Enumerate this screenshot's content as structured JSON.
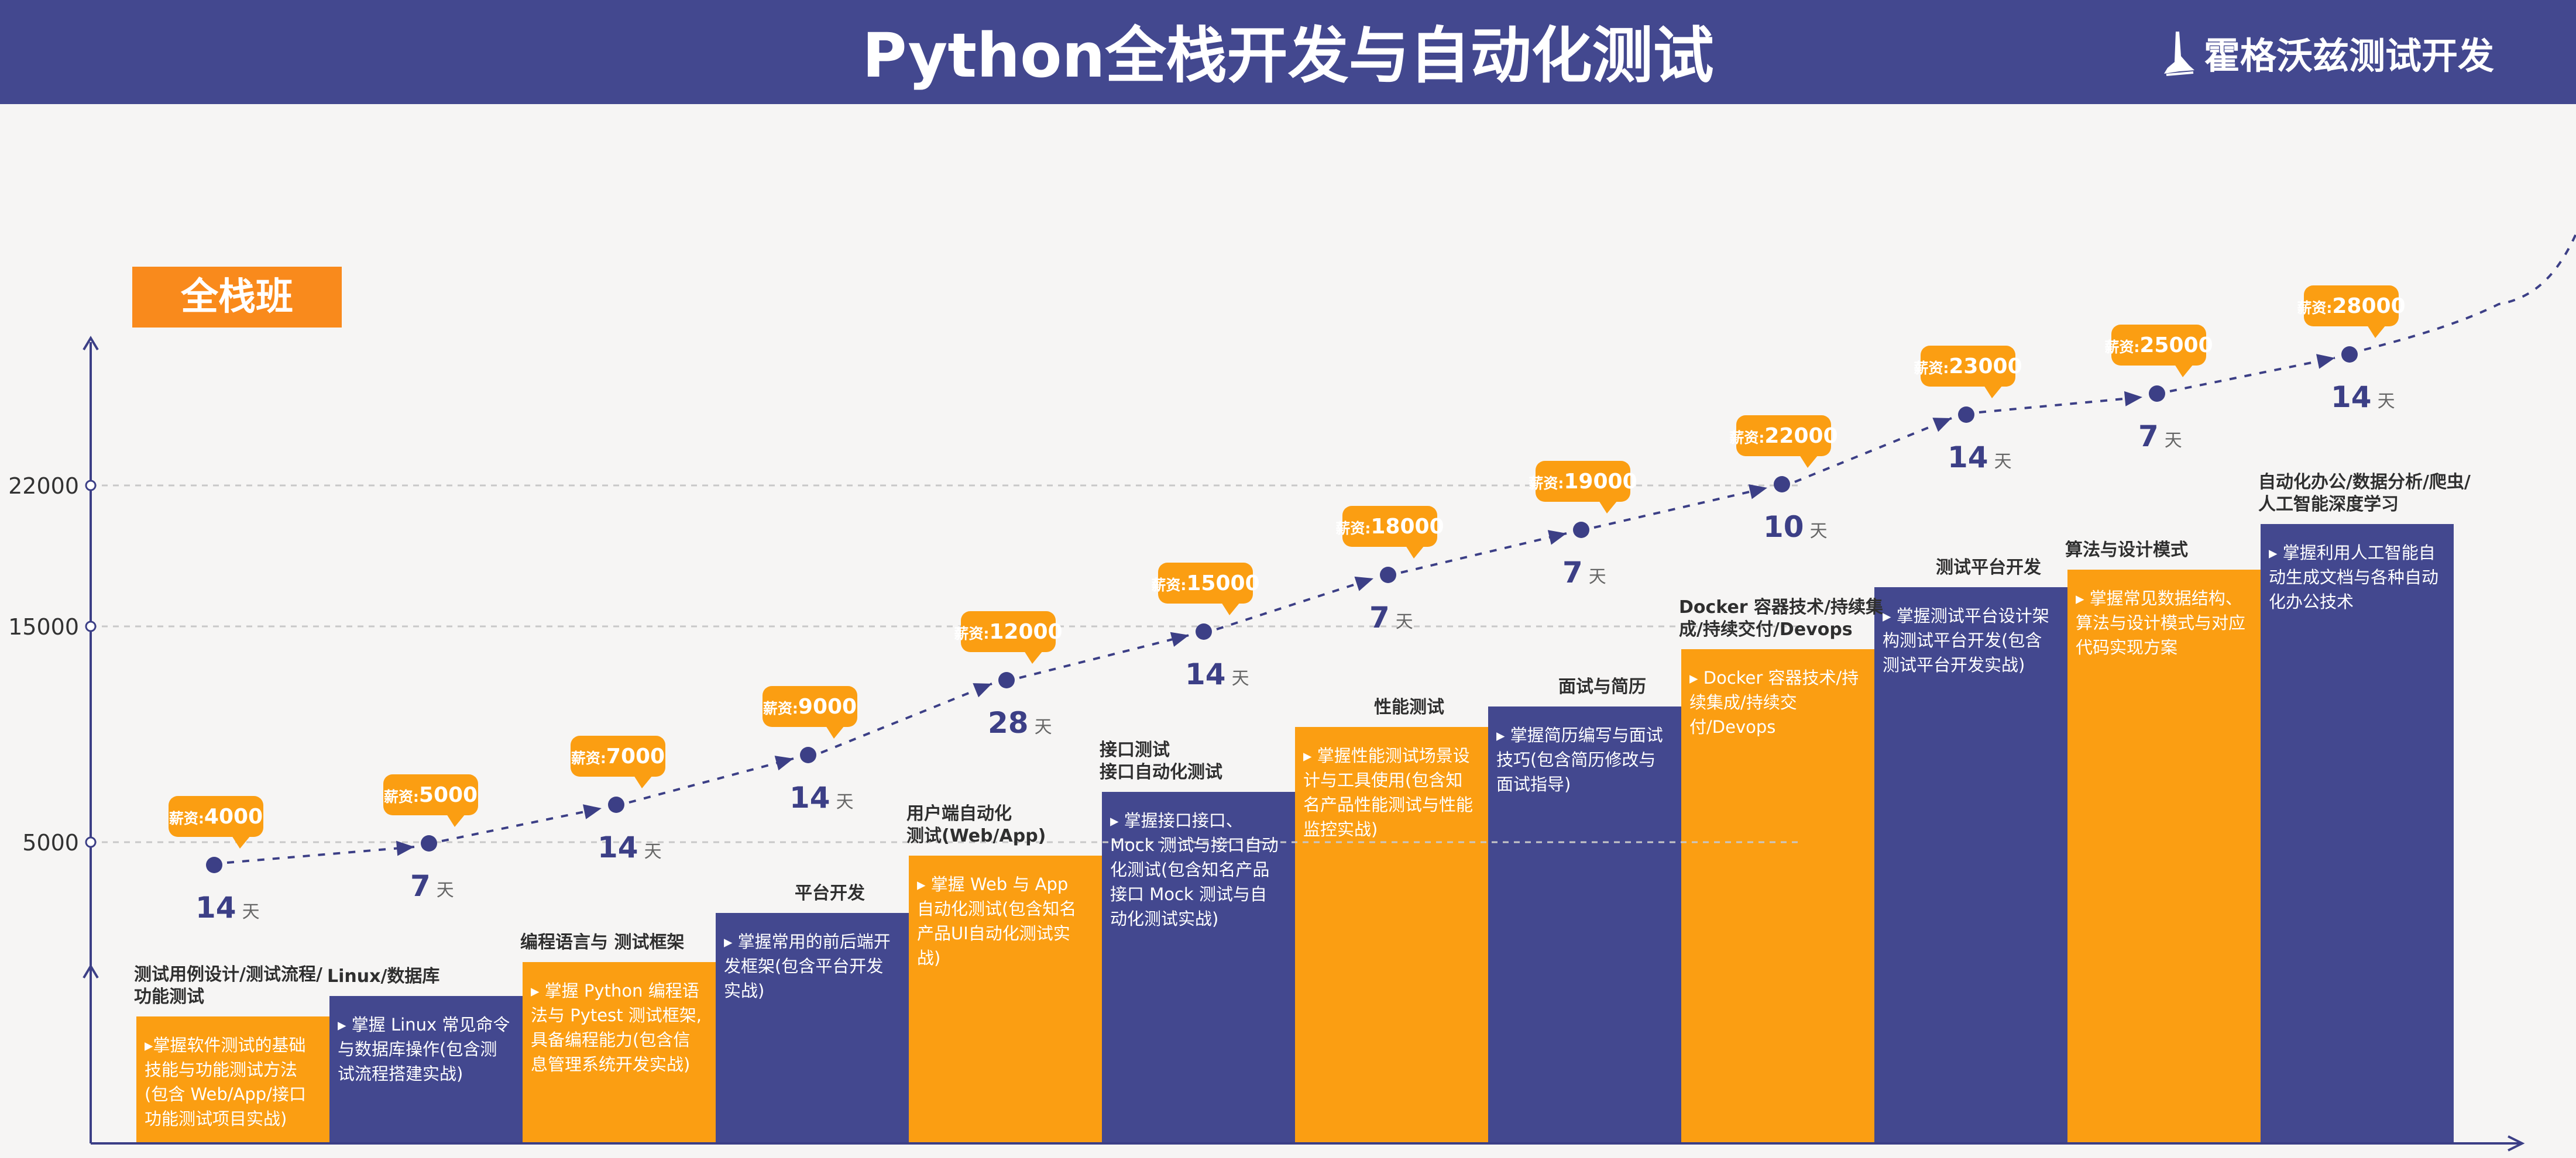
{
  "header": {
    "title": "Python全栈开发与自动化测试",
    "brand": "霍格沃兹测试开发",
    "brand_icon": "wizard-hat-icon"
  },
  "class_label": "全栈班",
  "day_unit": "天",
  "colors": {
    "header_bg": "#43488f",
    "bar_orange": "#fb9e12",
    "bar_indigo": "#43488f",
    "badge_orange": "#f98a1c",
    "axis": "#3c3f86",
    "point": "#3c3f86",
    "bubble": "#fb9e12"
  },
  "chart_data": {
    "type": "line",
    "y_ticks": [
      "5000",
      "15000",
      "22000"
    ],
    "salary_prefix": "薪资:",
    "points": [
      {
        "salary": "4000",
        "value": 4000,
        "days": "14"
      },
      {
        "salary": "5000",
        "value": 5000,
        "days": "7"
      },
      {
        "salary": "7000",
        "value": 7000,
        "days": "14"
      },
      {
        "salary": "9000",
        "value": 9000,
        "days": "14"
      },
      {
        "salary": "12000",
        "value": 12000,
        "days": "28"
      },
      {
        "salary": "15000",
        "value": 15000,
        "days": "14"
      },
      {
        "salary": "18000",
        "value": 18000,
        "days": "7"
      },
      {
        "salary": "19000",
        "value": 19000,
        "days": "7"
      },
      {
        "salary": "22000",
        "value": 22000,
        "days": "10"
      },
      {
        "salary": "23000",
        "value": 23000,
        "days": "14"
      },
      {
        "salary": "25000",
        "value": 25000,
        "days": "7"
      },
      {
        "salary": "28000",
        "value": 28000,
        "days": "14"
      }
    ]
  },
  "steps": [
    {
      "title": "测试用例设计/测试流程/\n功能测试",
      "desc": "▸掌握软件测试的基础技能与功能测试方法(包含 Web/App/接口功能测试项目实战)",
      "color": "orange"
    },
    {
      "title": "Linux/数据库",
      "desc": "▸ 掌握 Linux 常见命令与数据库操作(包含测试流程搭建实战)",
      "color": "indigo"
    },
    {
      "title": "编程语言与 测试框架",
      "desc": "▸ 掌握 Python 编程语法与 Pytest 测试框架,具备编程能力(包含信息管理系统开发实战)",
      "color": "orange"
    },
    {
      "title": "平台开发",
      "desc": "▸ 掌握常用的前后端开发框架(包含平台开发实战)",
      "color": "indigo"
    },
    {
      "title": "用户端自动化\n测试(Web/App)",
      "desc": "▸ 掌握 Web 与 App 自动化测试(包含知名产品UI自动化测试实战)",
      "color": "orange"
    },
    {
      "title": "接口测试\n接口自动化测试",
      "desc": "▸ 掌握接口接口、Mock 测试与接口自动化测试(包含知名产品接口 Mock 测试与自动化测试实战)",
      "color": "indigo"
    },
    {
      "title": "性能测试",
      "desc": "▸ 掌握性能测试场景设计与工具使用(包含知名产品性能测试与性能监控实战)",
      "color": "orange"
    },
    {
      "title": "面试与简历",
      "desc": "▸ 掌握简历编写与面试技巧(包含简历修改与面试指导)",
      "color": "indigo"
    },
    {
      "title": "Docker 容器技术/持续集\n成/持续交付/Devops",
      "desc": "▸ Docker 容器技术/持续集成/持续交付/Devops",
      "color": "orange"
    },
    {
      "title": "测试平台开发",
      "desc": "▸ 掌握测试平台设计架构测试平台开发(包含测试平台开发实战)",
      "color": "indigo"
    },
    {
      "title": "算法与设计模式",
      "desc": "▸ 掌握常见数据结构、算法与设计模式与对应代码实现方案",
      "color": "orange"
    },
    {
      "title": "自动化办公/数据分析/爬虫/\n人工智能深度学习",
      "desc": "▸ 掌握利用人工智能自动生成文档与各种自动化办公技术",
      "color": "indigo"
    }
  ]
}
